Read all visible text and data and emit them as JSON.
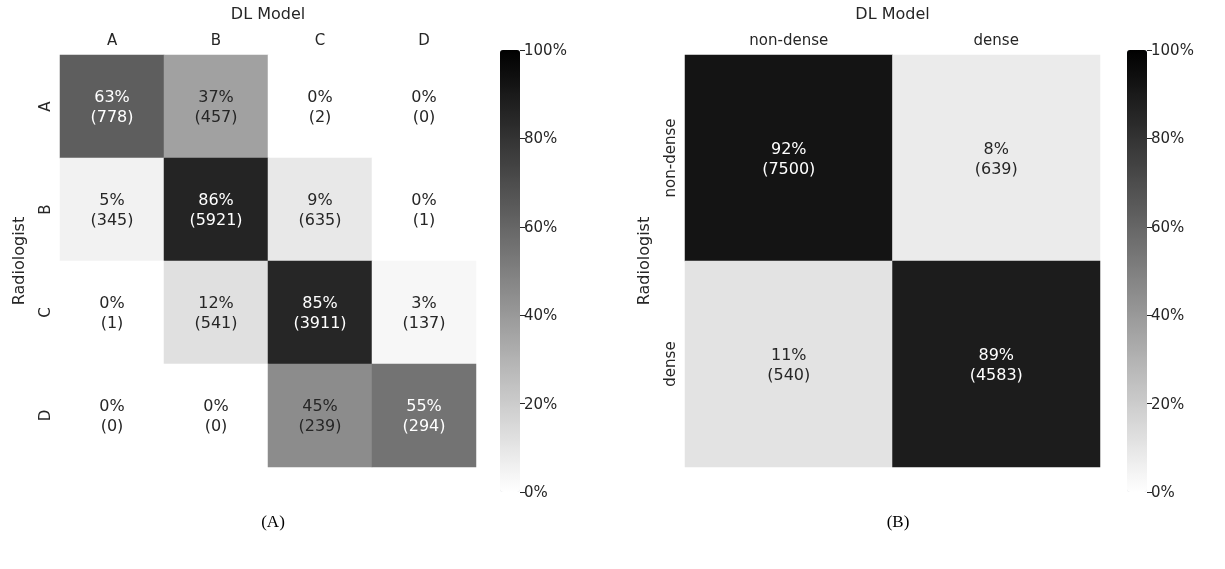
{
  "chart_data": [
    {
      "type": "heatmap",
      "xlabel": "DL Model",
      "ylabel": "Radiologist",
      "categories": [
        "A",
        "B",
        "C",
        "D"
      ],
      "y_categories": [
        "A",
        "B",
        "C",
        "D"
      ],
      "cells": [
        [
          63,
          37,
          0,
          0
        ],
        [
          5,
          86,
          9,
          0
        ],
        [
          0,
          12,
          85,
          3
        ],
        [
          0,
          0,
          45,
          55
        ]
      ],
      "cell_labels": [
        [
          "63%\n(778)",
          "37%\n(457)",
          "0%\n(2)",
          "0%\n(0)"
        ],
        [
          "5%\n(345)",
          "86%\n(5921)",
          "9%\n(635)",
          "0%\n(1)"
        ],
        [
          "0%\n(1)",
          "12%\n(541)",
          "85%\n(3911)",
          "3%\n(137)"
        ],
        [
          "0%\n(0)",
          "0%\n(0)",
          "45%\n(239)",
          "55%\n(294)"
        ]
      ],
      "clim": [
        0,
        100
      ],
      "cticks": [
        {
          "value": 0,
          "label": "0%"
        },
        {
          "value": 20,
          "label": "20%"
        },
        {
          "value": 40,
          "label": "40%"
        },
        {
          "value": 60,
          "label": "60%"
        },
        {
          "value": 80,
          "label": "80%"
        },
        {
          "value": 100,
          "label": "100%"
        }
      ],
      "annotations": [
        "(A)"
      ]
    },
    {
      "type": "heatmap",
      "xlabel": "DL Model",
      "ylabel": "Radiologist",
      "categories": [
        "non-dense",
        "dense"
      ],
      "y_categories": [
        "non-dense",
        "dense"
      ],
      "cells": [
        [
          92,
          8
        ],
        [
          11,
          89
        ]
      ],
      "cell_labels": [
        [
          "92%\n(7500)",
          "8%\n(639)"
        ],
        [
          "11%\n(540)",
          "89%\n(4583)"
        ]
      ],
      "clim": [
        0,
        100
      ],
      "cticks": [
        {
          "value": 0,
          "label": "0%"
        },
        {
          "value": 20,
          "label": "20%"
        },
        {
          "value": 40,
          "label": "40%"
        },
        {
          "value": 60,
          "label": "60%"
        },
        {
          "value": 80,
          "label": "80%"
        },
        {
          "value": 100,
          "label": "100%"
        }
      ],
      "annotations": [
        "(B)"
      ]
    }
  ]
}
